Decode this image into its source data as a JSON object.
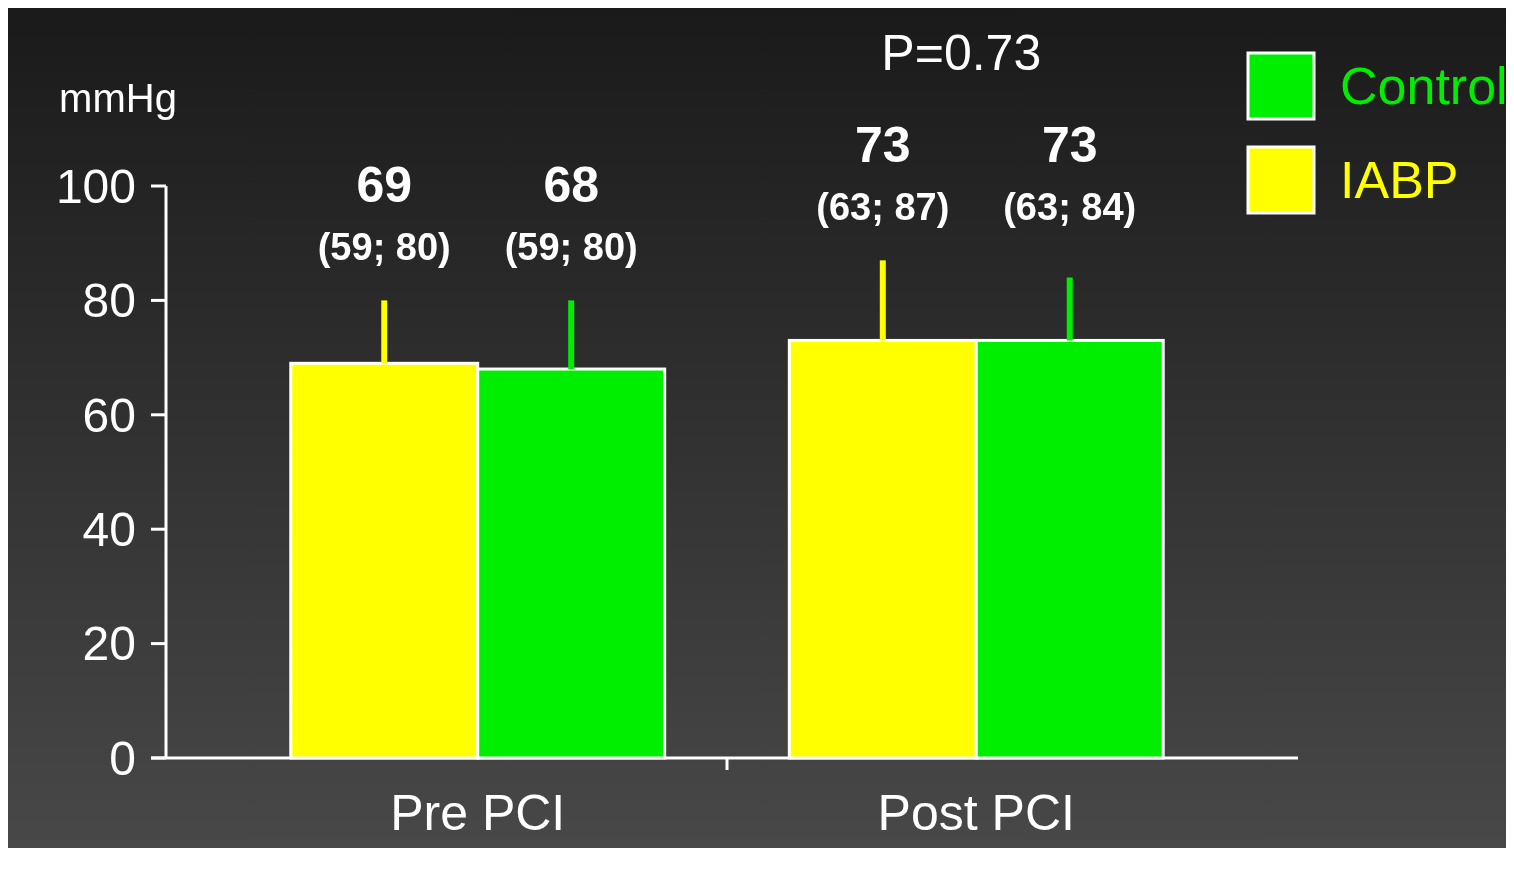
{
  "chart_data": {
    "type": "bar",
    "ylabel": "mmHg",
    "categories": [
      "Pre PCI",
      "Post PCI"
    ],
    "series": [
      {
        "name": "IABP",
        "color": "#ffff00",
        "values": [
          69,
          73
        ],
        "errors": [
          [
            69,
            80
          ],
          [
            73,
            87
          ]
        ],
        "value_labels": [
          "69\n(59; 80)",
          "73\n(63; 87)"
        ]
      },
      {
        "name": "Control",
        "color": "#00ee00",
        "values": [
          68,
          73
        ],
        "errors": [
          [
            68,
            80
          ],
          [
            73,
            84
          ]
        ],
        "value_labels": [
          "68\n(59; 80)",
          "73\n(63; 84)"
        ]
      }
    ],
    "ylim": [
      0,
      100
    ],
    "yticks": [
      0,
      20,
      40,
      60,
      80,
      100
    ],
    "annotations": [
      "P=0.73"
    ],
    "legend": "top right",
    "grid": false
  }
}
